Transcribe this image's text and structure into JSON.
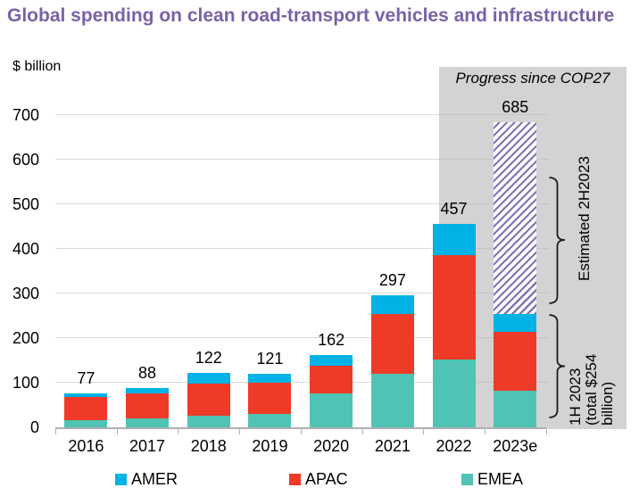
{
  "title": "Global spending on clean road-transport vehicles and infrastructure",
  "units_label": "$ billion",
  "progress_label": "Progress since COP27",
  "colors": {
    "amer": "#00B2E6",
    "apac": "#EE3A26",
    "emea": "#4FC4B5",
    "title_purple": "#7862A8",
    "hatch_purple": "#8273B8",
    "panel_gray": "#D3D3D3",
    "gridline": "#DBDBDB",
    "gridline_on_gray": "#C4C4C4",
    "axis": "#AFAFAF"
  },
  "chart_data": {
    "type": "bar",
    "stacked": true,
    "title": "Global spending on clean road-transport vehicles and infrastructure",
    "ylabel": "$ billion",
    "xlabel": "",
    "ylim": [
      0,
      700
    ],
    "yticks": [
      0,
      100,
      200,
      300,
      400,
      500,
      600,
      700
    ],
    "grid": true,
    "legend_position": "bottom",
    "categories": [
      "2016",
      "2017",
      "2018",
      "2019",
      "2020",
      "2021",
      "2022",
      "2023e"
    ],
    "series": [
      {
        "name": "EMEA",
        "color_key": "emea",
        "values": [
          16,
          21,
          26,
          31,
          76,
          121,
          153,
          83
        ]
      },
      {
        "name": "APAC",
        "color_key": "apac",
        "values": [
          52,
          56,
          73,
          70,
          62,
          133,
          233,
          132
        ]
      },
      {
        "name": "AMER",
        "color_key": "amer",
        "values": [
          9,
          11,
          23,
          20,
          24,
          43,
          71,
          39
        ]
      }
    ],
    "totals": [
      77,
      88,
      122,
      121,
      162,
      297,
      457,
      685
    ],
    "total_labels": [
      "77",
      "88",
      "122",
      "121",
      "162",
      "297",
      "457",
      "685"
    ],
    "estimated": {
      "category": "2023e",
      "from": 254,
      "to": 685,
      "label": "Estimated 2H2023"
    },
    "first_half_total": 254,
    "first_half_label_lines": [
      "1H 2023",
      "(total $254",
      "billion)"
    ],
    "legend": [
      "AMER",
      "APAC",
      "EMEA"
    ]
  }
}
